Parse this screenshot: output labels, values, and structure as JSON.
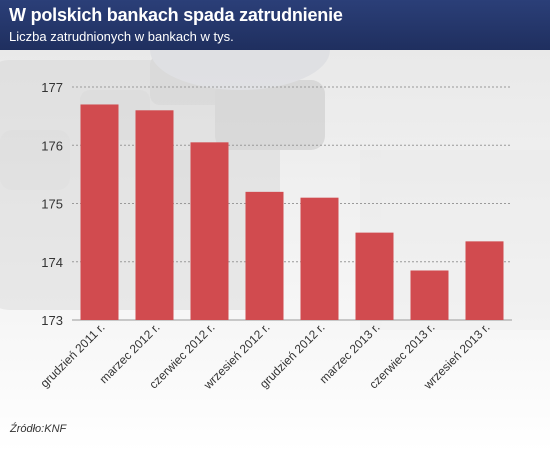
{
  "header": {
    "title": "W polskich bankach spada zatrudnienie",
    "subtitle": "Liczba zatrudnionych w bankach w tys."
  },
  "source": "Źródło:KNF",
  "colors": {
    "header_bg": "#26386b",
    "bar": "#d14b4f",
    "grid": "#9a9a9a"
  },
  "chart_data": {
    "type": "bar",
    "title": "W polskich bankach spada zatrudnienie",
    "subtitle": "Liczba zatrudnionych w bankach w tys.",
    "categories": [
      "grudzień 2011 r.",
      "marzec 2012 r.",
      "czerwiec 2012 r.",
      "wrzesień 2012 r.",
      "grudzień 2012 r.",
      "marzec 2013 r.",
      "czerwiec 2013 r.",
      "wrzesień 2013 r."
    ],
    "values": [
      176.7,
      176.6,
      176.05,
      175.2,
      175.1,
      174.5,
      173.85,
      174.35
    ],
    "ylim": [
      173,
      177
    ],
    "yticks": [
      173,
      174,
      175,
      176,
      177
    ],
    "grid": true,
    "xlabel": "",
    "ylabel": ""
  }
}
